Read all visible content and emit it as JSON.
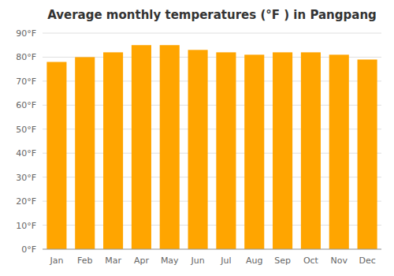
{
  "chart_data": {
    "type": "bar",
    "title": "Average monthly temperatures (°F ) in Pangpang",
    "categories": [
      "Jan",
      "Feb",
      "Mar",
      "Apr",
      "May",
      "Jun",
      "Jul",
      "Aug",
      "Sep",
      "Oct",
      "Nov",
      "Dec"
    ],
    "values": [
      78,
      80,
      82,
      85,
      85,
      83,
      82,
      81,
      82,
      82,
      81,
      79
    ],
    "color": "#FFA500",
    "ylim": [
      0,
      90
    ],
    "yticks": [
      {
        "value": 0,
        "label": "0°F"
      },
      {
        "value": 10,
        "label": "10°F"
      },
      {
        "value": 20,
        "label": "20°F"
      },
      {
        "value": 30,
        "label": "30°F"
      },
      {
        "value": 40,
        "label": "40°F"
      },
      {
        "value": 50,
        "label": "50°F"
      },
      {
        "value": 60,
        "label": "60°F"
      },
      {
        "value": 70,
        "label": "70°F"
      },
      {
        "value": 80,
        "label": "80°F"
      },
      {
        "value": 90,
        "label": "90°F"
      }
    ],
    "grid": true
  }
}
